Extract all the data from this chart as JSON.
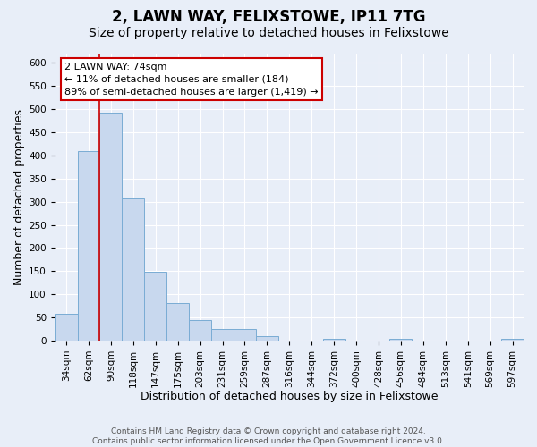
{
  "title": "2, LAWN WAY, FELIXSTOWE, IP11 7TG",
  "subtitle": "Size of property relative to detached houses in Felixstowe",
  "xlabel": "Distribution of detached houses by size in Felixstowe",
  "ylabel": "Number of detached properties",
  "bar_labels": [
    "34sqm",
    "62sqm",
    "90sqm",
    "118sqm",
    "147sqm",
    "175sqm",
    "203sqm",
    "231sqm",
    "259sqm",
    "287sqm",
    "316sqm",
    "344sqm",
    "372sqm",
    "400sqm",
    "428sqm",
    "456sqm",
    "484sqm",
    "513sqm",
    "541sqm",
    "569sqm",
    "597sqm"
  ],
  "bar_values": [
    57,
    410,
    493,
    307,
    148,
    82,
    44,
    26,
    26,
    9,
    0,
    0,
    4,
    0,
    0,
    4,
    0,
    0,
    0,
    0,
    4
  ],
  "bar_color": "#c8d8ee",
  "bar_edge_color": "#7aacd4",
  "ylim": [
    0,
    620
  ],
  "yticks": [
    0,
    50,
    100,
    150,
    200,
    250,
    300,
    350,
    400,
    450,
    500,
    550,
    600
  ],
  "vline_color": "#cc0000",
  "annotation_line1": "2 LAWN WAY: 74sqm",
  "annotation_line2": "← 11% of detached houses are smaller (184)",
  "annotation_line3": "89% of semi-detached houses are larger (1,419) →",
  "footer_line1": "Contains HM Land Registry data © Crown copyright and database right 2024.",
  "footer_line2": "Contains public sector information licensed under the Open Government Licence v3.0.",
  "bg_color": "#e8eef8",
  "plot_bg_color": "#e8eef8",
  "grid_color": "#ffffff",
  "title_fontsize": 12,
  "subtitle_fontsize": 10,
  "axis_label_fontsize": 9,
  "tick_fontsize": 7.5,
  "footer_fontsize": 6.5
}
